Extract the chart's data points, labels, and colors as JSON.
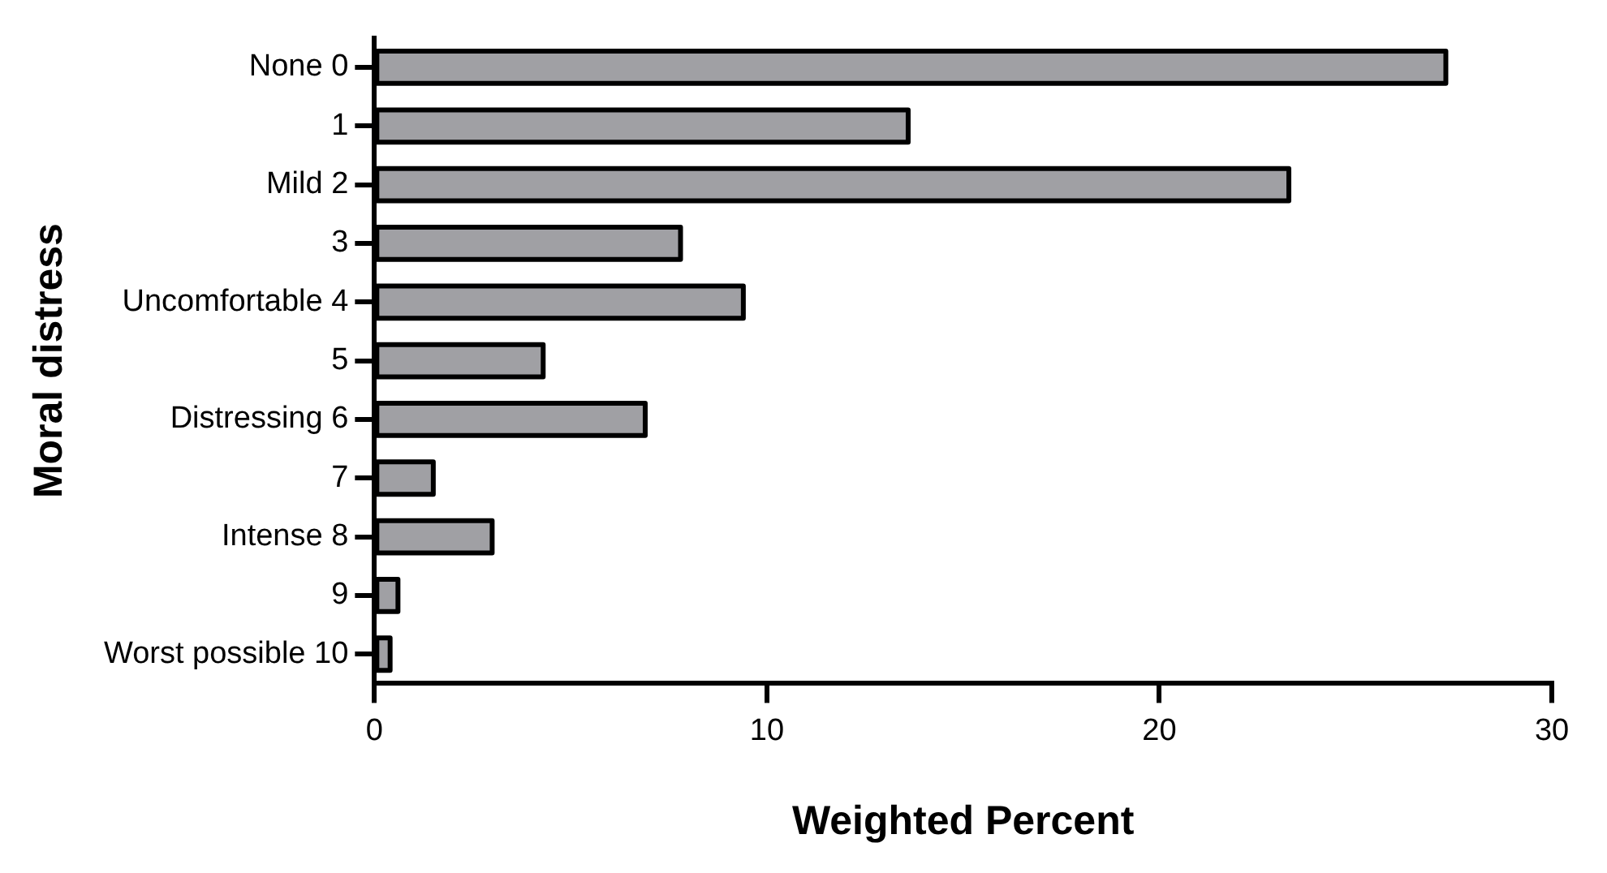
{
  "chart_data": {
    "type": "bar",
    "orientation": "horizontal",
    "categories": [
      "None 0",
      "1",
      "Mild 2",
      "3",
      "Uncomfortable 4",
      "5",
      "Distressing 6",
      "7",
      "Intense 8",
      "9",
      "Worst possible 10"
    ],
    "values": [
      27.3,
      13.6,
      23.3,
      7.8,
      9.4,
      4.3,
      6.9,
      1.5,
      3.0,
      0.6,
      0.4
    ],
    "color": "#a0a0a4",
    "xlim": [
      0,
      30
    ],
    "xticks": [
      0,
      10,
      20,
      30
    ],
    "xlabel": "Weighted Percent",
    "ylabel": "Moral distress",
    "grid": false,
    "legend": false
  }
}
